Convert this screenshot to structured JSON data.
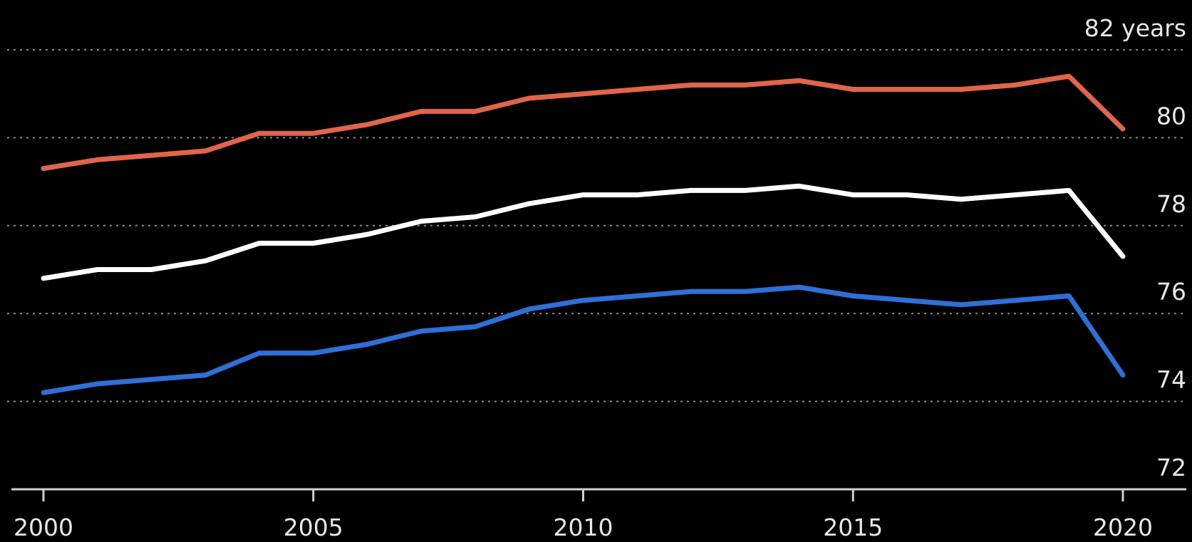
{
  "chart_data": {
    "type": "line",
    "title": "",
    "xlabel": "",
    "ylabel": "",
    "y_unit_label": "82 years",
    "x": [
      2000,
      2001,
      2002,
      2003,
      2004,
      2005,
      2006,
      2007,
      2008,
      2009,
      2010,
      2011,
      2012,
      2013,
      2014,
      2015,
      2016,
      2017,
      2018,
      2019,
      2020
    ],
    "x_ticks": [
      2000,
      2005,
      2010,
      2015,
      2020
    ],
    "x_tick_labels": [
      "2000",
      "2005",
      "2010",
      "2015",
      "2020"
    ],
    "y_ticks": [
      72,
      74,
      76,
      78,
      80,
      82
    ],
    "y_tick_labels": [
      "72",
      "74",
      "76",
      "78",
      "80",
      "82 years"
    ],
    "xlim": [
      2000,
      2020
    ],
    "ylim": [
      72,
      82
    ],
    "grid": true,
    "legend": "none",
    "series": [
      {
        "color": "#e0654a",
        "values": [
          79.3,
          79.5,
          79.6,
          79.7,
          80.1,
          80.1,
          80.3,
          80.6,
          80.6,
          80.9,
          81.0,
          81.1,
          81.2,
          81.2,
          81.3,
          81.1,
          81.1,
          81.1,
          81.2,
          81.4,
          80.2
        ]
      },
      {
        "color": "#ffffff",
        "values": [
          76.8,
          77.0,
          77.0,
          77.2,
          77.6,
          77.6,
          77.8,
          78.1,
          78.2,
          78.5,
          78.7,
          78.7,
          78.8,
          78.8,
          78.9,
          78.7,
          78.7,
          78.6,
          78.7,
          78.8,
          77.3
        ]
      },
      {
        "color": "#2f6fd6",
        "values": [
          74.2,
          74.4,
          74.5,
          74.6,
          75.1,
          75.1,
          75.3,
          75.6,
          75.7,
          76.1,
          76.3,
          76.4,
          76.5,
          76.5,
          76.6,
          76.4,
          76.3,
          76.2,
          76.3,
          76.4,
          74.6
        ]
      }
    ]
  }
}
